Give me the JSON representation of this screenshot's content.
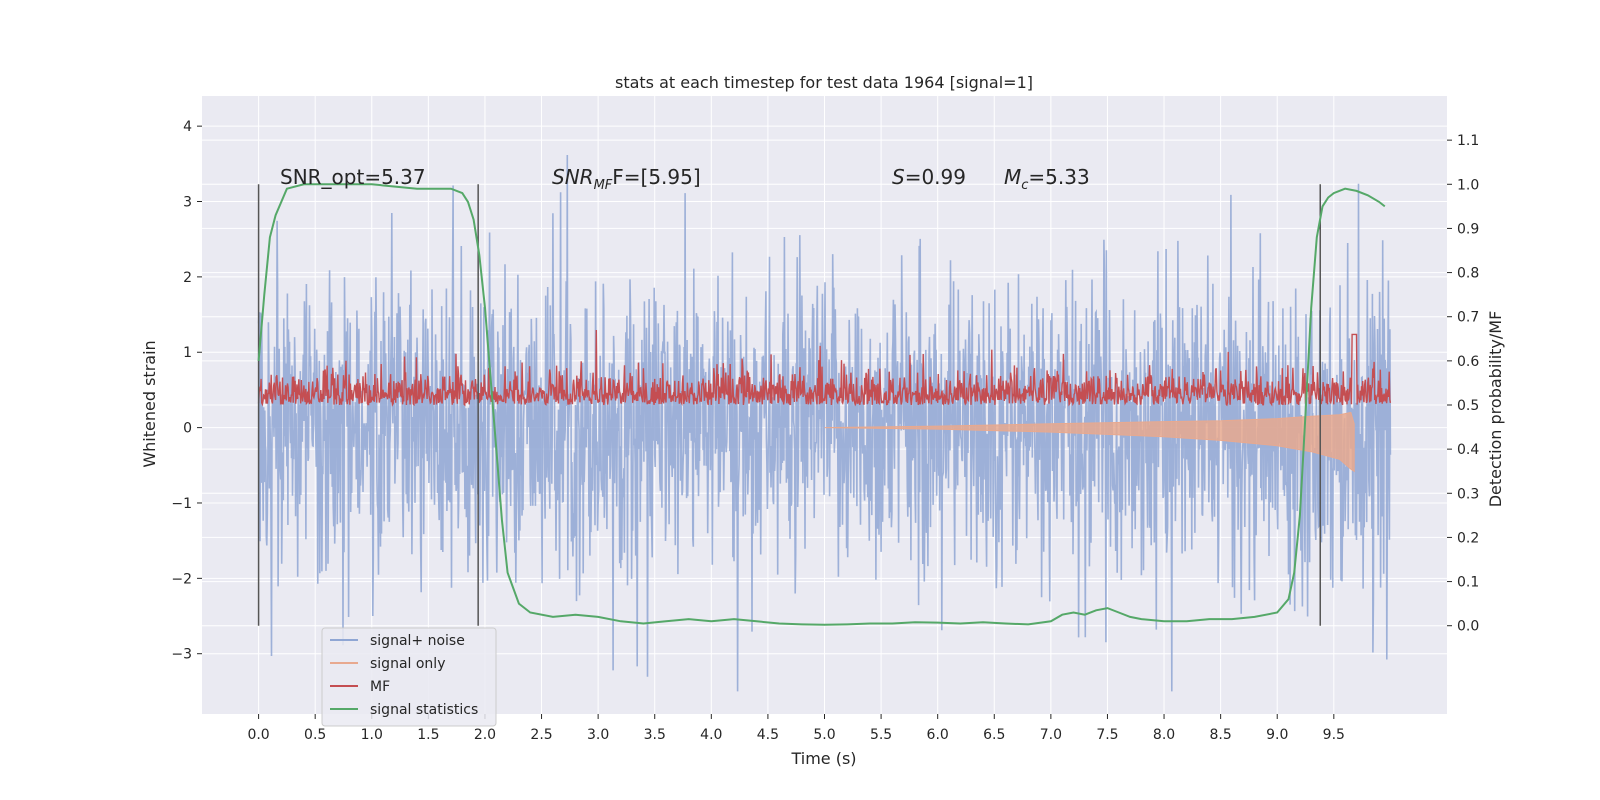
{
  "chart_data": {
    "type": "line",
    "title": "stats at each timestep for test data 1964 [signal=1]",
    "xlabel": "Time (s)",
    "ylabel": "Whitened strain",
    "ylabel_right": "Detection probability/MF",
    "xlim": [
      -0.5,
      10.5
    ],
    "ylim": [
      -3.8,
      4.4
    ],
    "ylim_right": [
      -0.2,
      1.2
    ],
    "x_ticks": [
      "0.0",
      "0.5",
      "1.0",
      "1.5",
      "2.0",
      "2.5",
      "3.0",
      "3.5",
      "4.0",
      "4.5",
      "5.0",
      "5.5",
      "6.0",
      "6.5",
      "7.0",
      "7.5",
      "8.0",
      "8.5",
      "9.0",
      "9.5"
    ],
    "y_ticks": [
      "4",
      "3",
      "2",
      "1",
      "0",
      "−1",
      "−2",
      "−3"
    ],
    "y_ticks_right": [
      "1.1",
      "1.0",
      "0.9",
      "0.8",
      "0.7",
      "0.6",
      "0.5",
      "0.4",
      "0.3",
      "0.2",
      "0.1",
      "0.0"
    ],
    "grid": true,
    "legend_position": "lower-left",
    "annotations": {
      "snr_opt": "SNR_opt=5.37",
      "snr_mf_main": "SNR",
      "snr_mf_sub": "MF",
      "snr_mf_value": "F=[5.95]",
      "s_symbol": "S",
      "s_value": "=0.99",
      "mc_symbol": "M",
      "mc_sub": "c",
      "mc_value": "=5.33"
    },
    "vertical_markers_x": [
      0.0,
      1.94,
      9.38
    ],
    "series": [
      {
        "name": "signal+ noise",
        "color": "#8fa6d4",
        "axis": "left",
        "note": "noisy whitened strain, roughly uniform amplitude between about -2.3 and 2.4 with spikes up to about 4.0 and down to about -3.5, from t=0 to t=10"
      },
      {
        "name": "signal only",
        "color": "#e8a98f",
        "axis": "left",
        "envelope": [
          [
            5.0,
            0.0,
            0.0
          ],
          [
            6.0,
            -0.02,
            0.02
          ],
          [
            7.0,
            -0.06,
            0.05
          ],
          [
            8.0,
            -0.12,
            0.08
          ],
          [
            8.5,
            -0.17,
            0.09
          ],
          [
            9.0,
            -0.24,
            0.12
          ],
          [
            9.3,
            -0.32,
            0.15
          ],
          [
            9.55,
            -0.42,
            0.17
          ],
          [
            9.65,
            -0.55,
            0.2
          ],
          [
            9.68,
            -0.58,
            0.05
          ]
        ]
      },
      {
        "name": "MF",
        "color": "#c44e52",
        "axis": "right",
        "note": "matched filter output fluctuating between about 0.47 and 0.60 with peaks up to about 0.66"
      },
      {
        "name": "signal statistics",
        "color": "#55a868",
        "axis": "right",
        "x": [
          0.0,
          0.05,
          0.1,
          0.15,
          0.25,
          0.4,
          0.6,
          1.0,
          1.4,
          1.7,
          1.8,
          1.85,
          1.9,
          1.95,
          2.0,
          2.05,
          2.1,
          2.15,
          2.2,
          2.3,
          2.4,
          2.6,
          2.8,
          3.0,
          3.2,
          3.4,
          3.6,
          3.8,
          4.0,
          4.2,
          4.4,
          4.6,
          4.8,
          5.0,
          5.2,
          5.4,
          5.6,
          5.8,
          6.0,
          6.2,
          6.4,
          6.6,
          6.8,
          7.0,
          7.1,
          7.2,
          7.3,
          7.4,
          7.5,
          7.6,
          7.7,
          7.8,
          8.0,
          8.2,
          8.4,
          8.6,
          8.8,
          9.0,
          9.1,
          9.15,
          9.2,
          9.25,
          9.3,
          9.35,
          9.4,
          9.45,
          9.5,
          9.6,
          9.7,
          9.8,
          9.9,
          9.95
        ],
        "y": [
          0.6,
          0.75,
          0.88,
          0.93,
          0.99,
          1.0,
          1.0,
          1.0,
          0.99,
          0.99,
          0.98,
          0.96,
          0.92,
          0.84,
          0.72,
          0.56,
          0.4,
          0.24,
          0.12,
          0.05,
          0.03,
          0.02,
          0.025,
          0.02,
          0.01,
          0.005,
          0.01,
          0.015,
          0.01,
          0.015,
          0.01,
          0.005,
          0.003,
          0.002,
          0.003,
          0.005,
          0.005,
          0.008,
          0.007,
          0.005,
          0.008,
          0.005,
          0.003,
          0.01,
          0.025,
          0.03,
          0.025,
          0.035,
          0.04,
          0.03,
          0.02,
          0.015,
          0.01,
          0.01,
          0.015,
          0.015,
          0.02,
          0.03,
          0.06,
          0.12,
          0.25,
          0.48,
          0.72,
          0.88,
          0.95,
          0.97,
          0.98,
          0.99,
          0.985,
          0.975,
          0.96,
          0.95
        ]
      }
    ]
  }
}
